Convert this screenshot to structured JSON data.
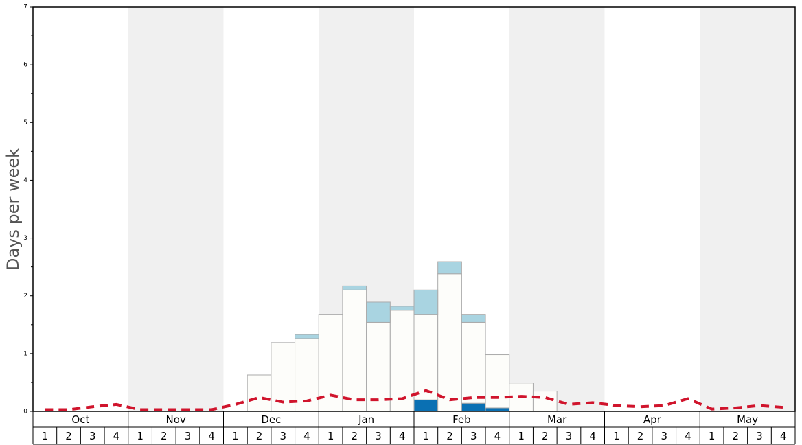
{
  "chart_data": {
    "type": "stacked-bar-line",
    "y_label": "Days per week",
    "months": [
      "Oct",
      "Nov",
      "Dec",
      "Jan",
      "Feb",
      "Mar",
      "Apr",
      "May"
    ],
    "categories": [
      "1",
      "2",
      "3",
      "4",
      "1",
      "2",
      "3",
      "4",
      "1",
      "2",
      "3",
      "4",
      "1",
      "2",
      "3",
      "4",
      "1",
      "2",
      "3",
      "4",
      "1",
      "2",
      "3",
      "4",
      "1",
      "2",
      "3",
      "4",
      "1",
      "2",
      "3",
      "4"
    ],
    "series": [
      {
        "color": "#0a70b3",
        "values": [
          0,
          0,
          0,
          0,
          0,
          0,
          0,
          0,
          0,
          0,
          0,
          0,
          0,
          0,
          0,
          0,
          0.2,
          0,
          0.14,
          0.06,
          0,
          0,
          0,
          0,
          0,
          0,
          0,
          0,
          0,
          0,
          0,
          0
        ]
      },
      {
        "color": "#fdfdfa",
        "values": [
          0,
          0,
          0,
          0,
          0,
          0,
          0,
          0,
          0,
          0.63,
          1.19,
          1.26,
          1.68,
          2.1,
          1.54,
          1.75,
          1.48,
          2.38,
          1.4,
          0.92,
          0.49,
          0.35,
          0,
          0,
          0,
          0,
          0,
          0,
          0,
          0,
          0,
          0
        ]
      },
      {
        "color": "#a9d4e1",
        "values": [
          0,
          0,
          0,
          0,
          0,
          0,
          0,
          0,
          0,
          0,
          0,
          0.07,
          0,
          0.07,
          0.35,
          0.07,
          0.42,
          0.21,
          0.14,
          0,
          0,
          0,
          0,
          0,
          0,
          0,
          0,
          0,
          0,
          0,
          0,
          0
        ]
      },
      {
        "type": "line",
        "color": "#d0142c",
        "dashed": true,
        "values": [
          0.03,
          0.03,
          0.08,
          0.12,
          0.03,
          0.03,
          0.03,
          0.03,
          0.12,
          0.24,
          0.16,
          0.18,
          0.28,
          0.2,
          0.2,
          0.22,
          0.36,
          0.2,
          0.24,
          0.24,
          0.26,
          0.24,
          0.12,
          0.15,
          0.1,
          0.08,
          0.1,
          0.22,
          0.04,
          0.06,
          0.1,
          0.07
        ]
      }
    ],
    "ylim": [
      0,
      7
    ],
    "yticks": [
      0,
      1,
      2,
      3,
      4,
      5,
      6,
      7
    ]
  }
}
